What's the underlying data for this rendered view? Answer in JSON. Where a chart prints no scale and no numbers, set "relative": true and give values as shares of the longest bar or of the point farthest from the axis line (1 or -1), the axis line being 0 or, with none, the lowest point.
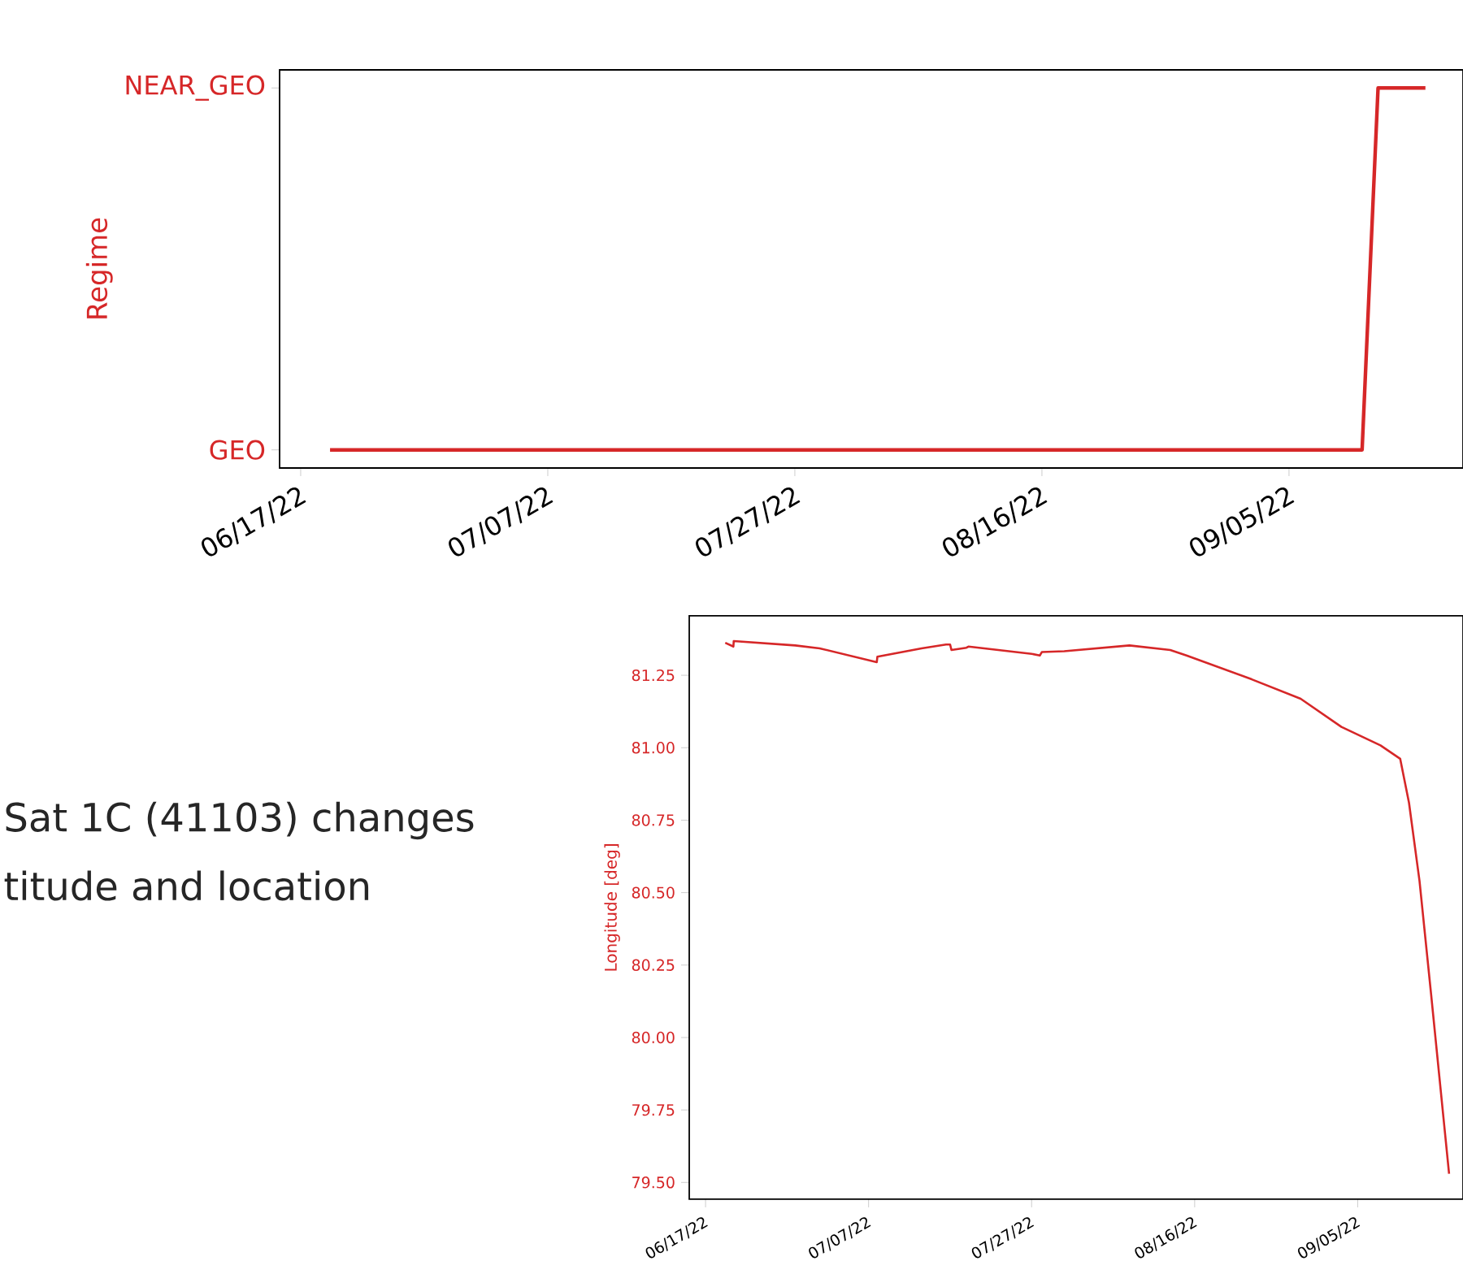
{
  "chart_data": [
    {
      "type": "line",
      "ylabel": "Regime",
      "color": "#d62728",
      "x": [
        "2022-06-19T09:00",
        "2022-09-10T22:00",
        "2022-09-12T05:00",
        "2022-09-16T01:00"
      ],
      "values": [
        0,
        0,
        1,
        1
      ],
      "relative": true,
      "annotations": [
        "GEO",
        "NEAR_GEO"
      ],
      "xlim": [
        "2022-06-15T07:00",
        "2022-09-19T02:00"
      ],
      "xticks": [
        {
          "value": "2022-06-17",
          "label": "06/17/22"
        },
        {
          "value": "2022-07-07",
          "label": "07/07/22"
        },
        {
          "value": "2022-07-27",
          "label": "07/27/22"
        },
        {
          "value": "2022-08-16",
          "label": "08/16/22"
        },
        {
          "value": "2022-09-05",
          "label": "09/05/22"
        }
      ],
      "tick_labels": "x"
    },
    {
      "type": "other",
      "annotations": [
        "Sat 1C (41103) changes",
        "titude and location"
      ]
    },
    {
      "type": "line",
      "ylabel": "Longitude [deg]",
      "color": "#d62728",
      "x": [
        "2022-06-19T10:00",
        "2022-06-20T10:00",
        "2022-06-20T11:00",
        "2022-06-28",
        "2022-07-01",
        "2022-07-08T00:00",
        "2022-07-08T02:00",
        "2022-07-13T12:00",
        "2022-07-16T12:00",
        "2022-07-17T00:00",
        "2022-07-17T04:00",
        "2022-07-19T00:00",
        "2022-07-19T06:00",
        "2022-07-27",
        "2022-07-28T00:00",
        "2022-07-28T06:00",
        "2022-07-31",
        "2022-08-08",
        "2022-08-13",
        "2022-08-15",
        "2022-08-23",
        "2022-08-29",
        "2022-09-03",
        "2022-09-07T19:00",
        "2022-09-10T05:00",
        "2022-09-11T07:00",
        "2022-09-12T14:00",
        "2022-09-14T00:00",
        "2022-09-16T05:00"
      ],
      "values": [
        81.362,
        81.349,
        81.368,
        81.353,
        81.343,
        81.295,
        81.314,
        81.343,
        81.356,
        81.356,
        81.337,
        81.345,
        81.349,
        81.324,
        81.318,
        81.33,
        81.333,
        81.353,
        81.337,
        81.318,
        81.236,
        81.169,
        81.072,
        81.008,
        80.962,
        80.81,
        80.54,
        80.15,
        79.53
      ],
      "xlim": [
        "2022-06-15T00:00",
        "2022-09-17T22:00"
      ],
      "ylim": [
        79.442,
        81.455
      ],
      "xticks": [
        {
          "value": "2022-06-17",
          "label": "06/17/22"
        },
        {
          "value": "2022-07-07",
          "label": "07/07/22"
        },
        {
          "value": "2022-07-27",
          "label": "07/27/22"
        },
        {
          "value": "2022-08-16",
          "label": "08/16/22"
        },
        {
          "value": "2022-09-05",
          "label": "09/05/22"
        }
      ],
      "yticks": [
        {
          "value": 79.5,
          "label": "79.50"
        },
        79.75,
        {
          "value": 80,
          "label": "80.00"
        },
        80.25,
        {
          "value": 80.5,
          "label": "80.50"
        },
        80.75,
        {
          "value": 81,
          "label": "81.00"
        },
        81.25
      ]
    }
  ]
}
